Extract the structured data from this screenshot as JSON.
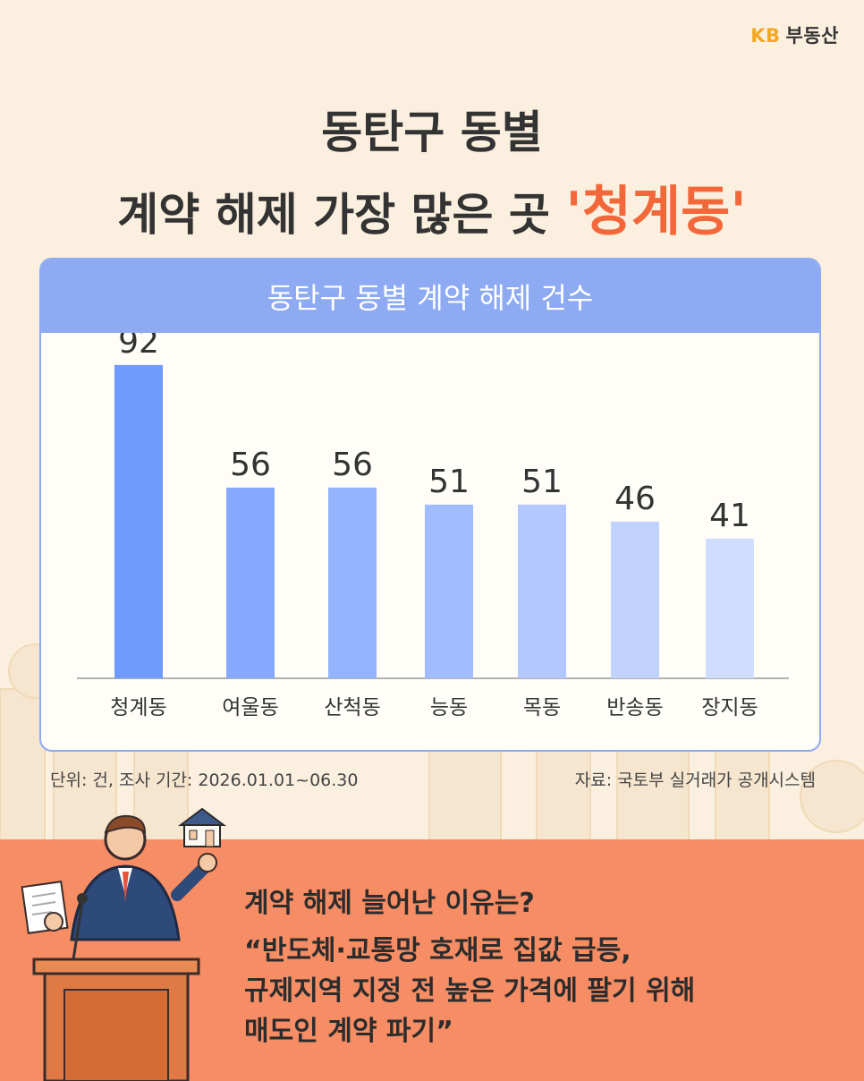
{
  "brand": {
    "kb": "KB",
    "name": "부동산"
  },
  "headline": {
    "line1": "동탄구 동별",
    "line2_prefix": "계약 해제 가장 많은 곳 ",
    "line2_highlight": "'청계동'"
  },
  "chart_data": {
    "type": "bar",
    "title": "동탄구 동별 계약 해제 건수",
    "categories": [
      "청계동",
      "여울동",
      "산척동",
      "능동",
      "목동",
      "반송동",
      "장지동"
    ],
    "values": [
      92,
      56,
      56,
      51,
      51,
      46,
      41
    ],
    "ylim": [
      0,
      100
    ],
    "grid": false,
    "bar_colors": [
      "#6f9bff",
      "#86a9ff",
      "#94b3ff",
      "#a2bdff",
      "#b2c8ff",
      "#c1d2ff",
      "#d1ddff"
    ]
  },
  "footnote": {
    "unit": "단위: 건, 조사 기간: 2026.01.01~06.30",
    "source": "자료: 국토부 실거래가 공개시스템"
  },
  "bottom": {
    "question": "계약 해제 늘어난 이유는?",
    "quote_lines": [
      "“반도체·교통망 호재로 집값 급등,",
      "규제지역 지정 전 높은 가격에 팔기 위해",
      "매도인 계약 파기”"
    ]
  },
  "colors": {
    "accent": "#f2683a",
    "card_header": "#8daaf2",
    "bottom_panel": "#f68d64",
    "background": "#fbf0df"
  }
}
